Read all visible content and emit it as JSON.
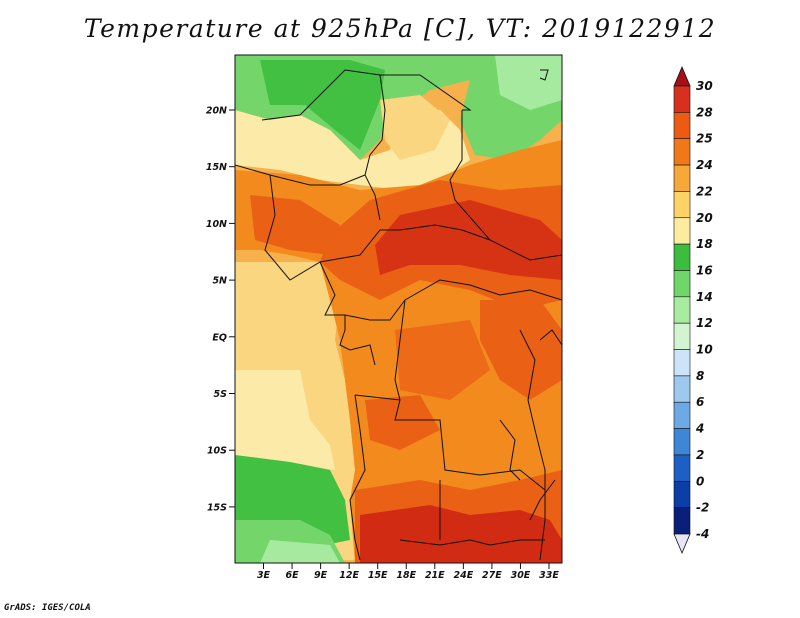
{
  "title": "Temperature at 925hPa [C], VT: 2019122912",
  "credit": "GrADS: IGES/COLA",
  "lat_labels": [
    "20N",
    "15N",
    "10N",
    "5N",
    "EQ",
    "5S",
    "10S",
    "15S"
  ],
  "lon_labels": [
    "3E",
    "6E",
    "9E",
    "12E",
    "15E",
    "18E",
    "21E",
    "24E",
    "27E",
    "30E",
    "33E"
  ],
  "colorbar": {
    "labels": [
      "30",
      "28",
      "25",
      "24",
      "22",
      "20",
      "18",
      "16",
      "14",
      "12",
      "10",
      "8",
      "6",
      "4",
      "2",
      "0",
      "-2",
      "-4"
    ],
    "colors": [
      "#a50f15",
      "#d7301f",
      "#ec5a14",
      "#f07818",
      "#f6a83a",
      "#fdd267",
      "#fbeca0",
      "#3dbd3d",
      "#70d66a",
      "#a9eba1",
      "#d3f4d0",
      "#cde3f7",
      "#9fc8ef",
      "#6da9e4",
      "#3e86d6",
      "#1e5fc4",
      "#0c3ea8",
      "#0a1f7a",
      "#05115a"
    ]
  },
  "map_colors": {
    "hot": "#d22b14",
    "warm_orange": "#ea6116",
    "orange": "#f28a1e",
    "light_orange": "#f6b14c",
    "pale_yellow": "#fad680",
    "cream": "#fbeaa8",
    "green_dark": "#41c041",
    "green": "#74d66a",
    "green_light": "#a6eaa0"
  }
}
